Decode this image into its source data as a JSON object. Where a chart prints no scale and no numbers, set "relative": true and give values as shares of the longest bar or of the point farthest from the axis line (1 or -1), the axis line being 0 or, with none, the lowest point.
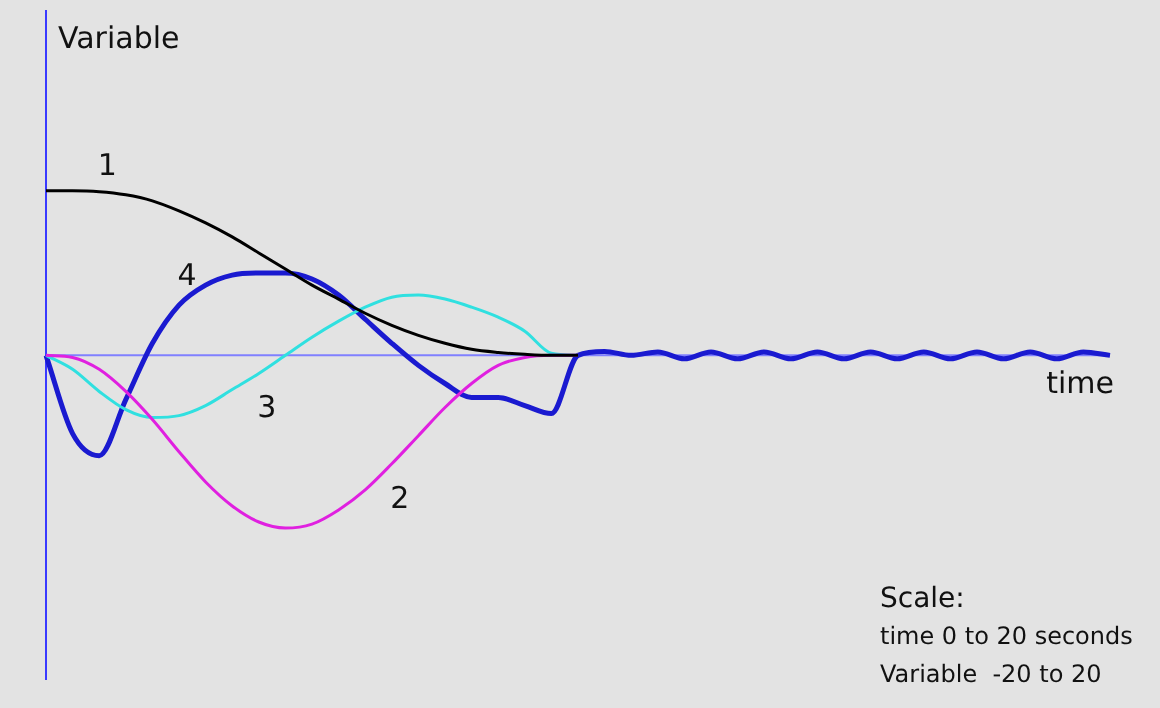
{
  "chart_data": {
    "type": "line",
    "relative": true,
    "ylabel": "Variable",
    "xlabel": "time",
    "annotations": [
      "Scale:",
      "time 0 to 20 seconds",
      "Variable  -20 to 20"
    ],
    "categories": [
      null,
      null,
      null,
      null,
      null,
      null,
      null,
      null,
      null,
      null,
      null,
      null,
      null,
      null,
      null,
      null,
      null,
      null,
      null,
      null,
      null,
      null,
      null,
      null,
      null,
      null,
      null,
      null,
      null,
      null,
      null,
      null,
      null,
      null,
      null,
      null,
      null,
      null,
      null,
      null,
      null
    ],
    "legend": false,
    "marker": "none",
    "ref_lines": [
      {
        "axis": "y",
        "value": 0,
        "color": "#8080ff"
      }
    ],
    "series": [
      {
        "name": "1",
        "color": "#000000",
        "values": [
          0.953,
          0.953,
          0.948,
          0.93,
          0.895,
          0.837,
          0.767,
          0.686,
          0.593,
          0.5,
          0.407,
          0.326,
          0.244,
          0.174,
          0.116,
          0.07,
          0.035,
          0.017,
          0.006,
          0,
          0,
          null,
          null,
          null,
          null,
          null,
          null,
          null,
          null,
          null,
          null,
          null,
          null,
          null,
          null,
          null,
          null,
          null,
          null,
          null,
          null
        ]
      },
      {
        "name": "2",
        "color": "#e020e0",
        "values": [
          0,
          -0.012,
          -0.081,
          -0.209,
          -0.372,
          -0.558,
          -0.733,
          -0.872,
          -0.965,
          -1,
          -0.977,
          -0.895,
          -0.779,
          -0.628,
          -0.465,
          -0.302,
          -0.163,
          -0.058,
          -0.012,
          0,
          0,
          null,
          null,
          null,
          null,
          null,
          null,
          null,
          null,
          null,
          null,
          null,
          null,
          null,
          null,
          null,
          null,
          null,
          null,
          null,
          null
        ]
      },
      {
        "name": "3",
        "color": "#30e0e0",
        "values": [
          0,
          -0.081,
          -0.209,
          -0.314,
          -0.36,
          -0.349,
          -0.291,
          -0.198,
          -0.105,
          0,
          0.105,
          0.198,
          0.279,
          0.337,
          0.349,
          0.326,
          0.279,
          0.221,
          0.14,
          0.012,
          0,
          null,
          null,
          null,
          null,
          null,
          null,
          null,
          null,
          null,
          null,
          null,
          null,
          null,
          null,
          null,
          null,
          null,
          null,
          null,
          null
        ]
      },
      {
        "name": "4",
        "color": "#1a1ad0",
        "values": [
          0,
          -0.453,
          -0.581,
          -0.256,
          0.07,
          0.291,
          0.407,
          0.465,
          0.477,
          0.477,
          0.442,
          0.349,
          0.209,
          0.07,
          -0.058,
          -0.163,
          -0.244,
          -0.244,
          -0.291,
          -0.337,
          0,
          0.023,
          0,
          0.02,
          -0.02,
          0.02,
          -0.02,
          0.02,
          -0.02,
          0.02,
          -0.02,
          0.02,
          -0.02,
          0.02,
          -0.02,
          0.02,
          -0.02,
          0.02,
          -0.02,
          0.02,
          0
        ]
      }
    ]
  }
}
